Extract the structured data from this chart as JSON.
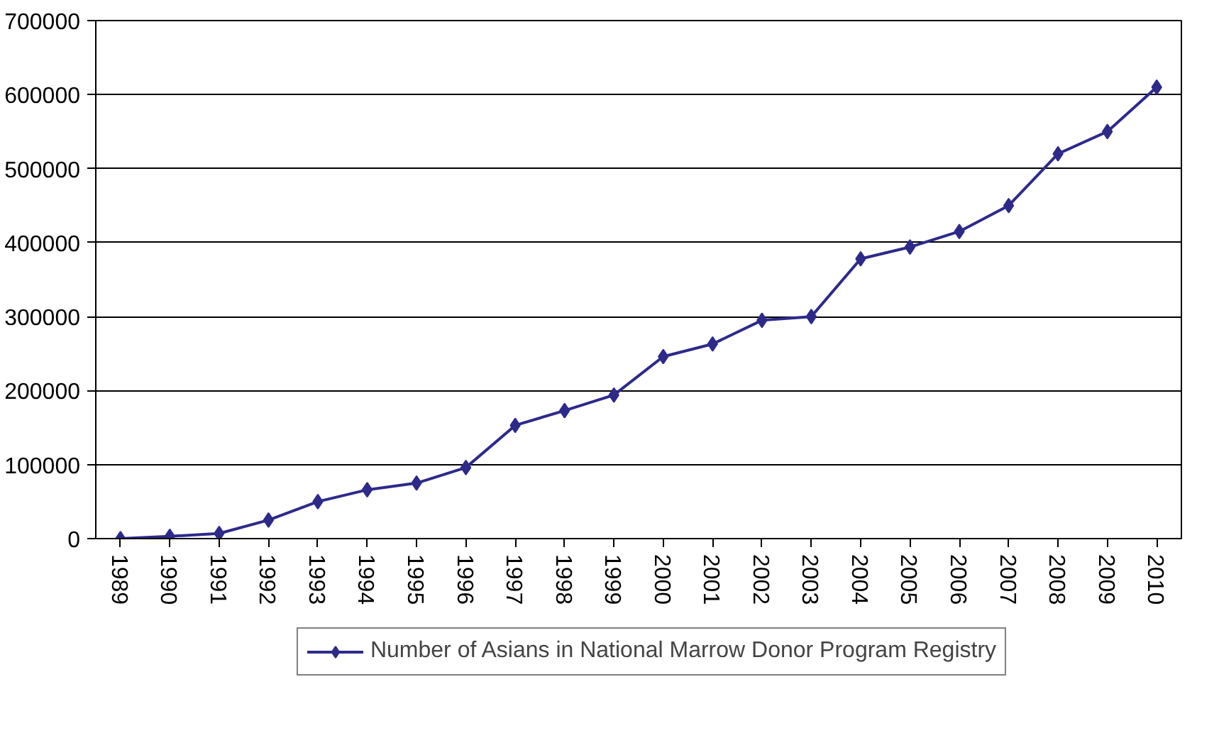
{
  "chart_data": {
    "type": "line",
    "categories": [
      "1989",
      "1990",
      "1991",
      "1992",
      "1993",
      "1994",
      "1995",
      "1996",
      "1997",
      "1998",
      "1999",
      "2000",
      "2001",
      "2002",
      "2003",
      "2004",
      "2005",
      "2006",
      "2007",
      "2008",
      "2009",
      "2010"
    ],
    "series": [
      {
        "name": "Number of Asians in National Marrow Donor Program Registry",
        "color": "#2e2a8a",
        "values": [
          0,
          3000,
          7000,
          25000,
          50000,
          66000,
          75000,
          96000,
          153000,
          173000,
          194000,
          246000,
          263000,
          295000,
          300000,
          378000,
          394000,
          415000,
          450000,
          520000,
          550000,
          610000
        ]
      }
    ],
    "ylim": [
      0,
      700000
    ],
    "yticks": [
      0,
      100000,
      200000,
      300000,
      400000,
      500000,
      600000,
      700000
    ],
    "grid": "y",
    "legend": "bottom",
    "marker": "diamond",
    "line_style": "solid"
  }
}
